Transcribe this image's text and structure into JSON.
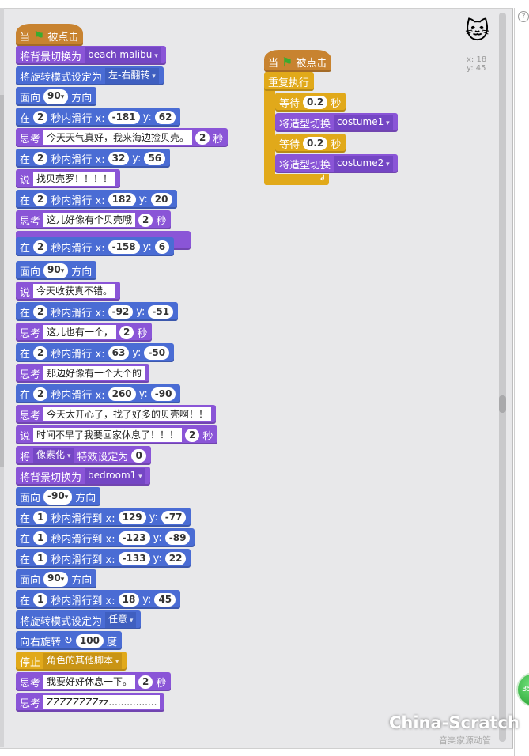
{
  "colors": {
    "motion": "#4a6cd4",
    "looks": "#8a55d7",
    "control": "#e1a91a",
    "events": "#c88330"
  },
  "sprite": {
    "icon": "scratch-cat-icon",
    "x_label": "x: 18",
    "y_label": "y: 45"
  },
  "help_label": "?",
  "badge": "35",
  "watermark": "China-Scratch",
  "watermark_sub": "音楽家源动管",
  "left_script": [
    {
      "cat": "events",
      "hat": true,
      "parts": [
        [
          "l",
          "当"
        ],
        [
          "flag",
          "green-flag-icon"
        ],
        [
          "l",
          "被点击"
        ]
      ]
    },
    {
      "cat": "looks",
      "parts": [
        [
          "l",
          "将背景切换为"
        ],
        [
          "dd",
          "beach malibu"
        ]
      ]
    },
    {
      "cat": "motion",
      "parts": [
        [
          "l",
          "将旋转模式设定为"
        ],
        [
          "dd",
          "左-右翻转"
        ]
      ]
    },
    {
      "cat": "motion",
      "parts": [
        [
          "l",
          "面向"
        ],
        [
          "ddn",
          "90"
        ],
        [
          "l",
          "方向"
        ]
      ]
    },
    {
      "cat": "motion",
      "parts": [
        [
          "l",
          "在"
        ],
        [
          "n",
          "2"
        ],
        [
          "l",
          "秒内滑行 x:"
        ],
        [
          "n",
          "-181"
        ],
        [
          "l",
          "y:"
        ],
        [
          "n",
          "62"
        ]
      ]
    },
    {
      "cat": "looks",
      "parts": [
        [
          "l",
          "思考"
        ],
        [
          "s",
          "今天天气真好，我来海边捡贝壳。"
        ],
        [
          "n",
          "2"
        ],
        [
          "l",
          "秒"
        ]
      ]
    },
    {
      "cat": "motion",
      "parts": [
        [
          "l",
          "在"
        ],
        [
          "n",
          "2"
        ],
        [
          "l",
          "秒内滑行 x:"
        ],
        [
          "n",
          "32"
        ],
        [
          "l",
          "y:"
        ],
        [
          "n",
          "56"
        ]
      ]
    },
    {
      "cat": "looks",
      "parts": [
        [
          "l",
          "说"
        ],
        [
          "s",
          "找贝壳罗！！！！"
        ]
      ]
    },
    {
      "cat": "motion",
      "parts": [
        [
          "l",
          "在"
        ],
        [
          "n",
          "2"
        ],
        [
          "l",
          "秒内滑行 x:"
        ],
        [
          "n",
          "182"
        ],
        [
          "l",
          "y:"
        ],
        [
          "n",
          "20"
        ]
      ]
    },
    {
      "cat": "looks",
      "parts": [
        [
          "l",
          "思考"
        ],
        [
          "s",
          "这儿好像有个贝壳哦"
        ],
        [
          "n",
          "2"
        ],
        [
          "l",
          "秒"
        ]
      ]
    },
    {
      "cat": "motion",
      "parts": [
        [
          "l",
          "在"
        ],
        [
          "n",
          "2"
        ],
        [
          "l",
          "秒内滑行 x:"
        ],
        [
          "n",
          "-158"
        ],
        [
          "l",
          "y:"
        ],
        [
          "n",
          "6"
        ]
      ]
    },
    {
      "cat": "motion",
      "parts": [
        [
          "l",
          "面向"
        ],
        [
          "ddn",
          "90"
        ],
        [
          "l",
          "方向"
        ]
      ]
    },
    {
      "cat": "looks",
      "parts": [
        [
          "l",
          "说"
        ],
        [
          "s",
          "今天收获真不错。"
        ]
      ]
    },
    {
      "cat": "motion",
      "parts": [
        [
          "l",
          "在"
        ],
        [
          "n",
          "2"
        ],
        [
          "l",
          "秒内滑行 x:"
        ],
        [
          "n",
          "-92"
        ],
        [
          "l",
          "y:"
        ],
        [
          "n",
          "-51"
        ]
      ]
    },
    {
      "cat": "looks",
      "parts": [
        [
          "l",
          "思考"
        ],
        [
          "s",
          "这儿也有一个，"
        ],
        [
          "n",
          "2"
        ],
        [
          "l",
          "秒"
        ]
      ]
    },
    {
      "cat": "motion",
      "parts": [
        [
          "l",
          "在"
        ],
        [
          "n",
          "2"
        ],
        [
          "l",
          "秒内滑行 x:"
        ],
        [
          "n",
          "63"
        ],
        [
          "l",
          "y:"
        ],
        [
          "n",
          "-50"
        ]
      ]
    },
    {
      "cat": "looks",
      "parts": [
        [
          "l",
          "思考"
        ],
        [
          "s",
          "那边好像有一个大个的"
        ]
      ]
    },
    {
      "cat": "motion",
      "parts": [
        [
          "l",
          "在"
        ],
        [
          "n",
          "2"
        ],
        [
          "l",
          "秒内滑行 x:"
        ],
        [
          "n",
          "260"
        ],
        [
          "l",
          "y:"
        ],
        [
          "n",
          "-90"
        ]
      ]
    },
    {
      "cat": "looks",
      "parts": [
        [
          "l",
          "思考"
        ],
        [
          "s",
          "今天太开心了，找了好多的贝壳啊！！"
        ]
      ]
    },
    {
      "cat": "looks",
      "parts": [
        [
          "l",
          "说"
        ],
        [
          "s",
          "时间不早了我要回家休息了！！！"
        ],
        [
          "n",
          "2"
        ],
        [
          "l",
          "秒"
        ]
      ]
    },
    {
      "cat": "looks",
      "parts": [
        [
          "l",
          "将"
        ],
        [
          "dd",
          "像素化"
        ],
        [
          "l",
          "特效设定为"
        ],
        [
          "n",
          "0"
        ]
      ]
    },
    {
      "cat": "looks",
      "parts": [
        [
          "l",
          "将背景切换为"
        ],
        [
          "dd",
          "bedroom1"
        ]
      ]
    },
    {
      "cat": "motion",
      "parts": [
        [
          "l",
          "面向"
        ],
        [
          "ddn",
          "-90"
        ],
        [
          "l",
          "方向"
        ]
      ]
    },
    {
      "cat": "motion",
      "parts": [
        [
          "l",
          "在"
        ],
        [
          "n",
          "1"
        ],
        [
          "l",
          "秒内滑行到 x:"
        ],
        [
          "n",
          "129"
        ],
        [
          "l",
          "y:"
        ],
        [
          "n",
          "-77"
        ]
      ]
    },
    {
      "cat": "motion",
      "parts": [
        [
          "l",
          "在"
        ],
        [
          "n",
          "1"
        ],
        [
          "l",
          "秒内滑行到 x:"
        ],
        [
          "n",
          "-123"
        ],
        [
          "l",
          "y:"
        ],
        [
          "n",
          "-89"
        ]
      ]
    },
    {
      "cat": "motion",
      "parts": [
        [
          "l",
          "在"
        ],
        [
          "n",
          "1"
        ],
        [
          "l",
          "秒内滑行到 x:"
        ],
        [
          "n",
          "-133"
        ],
        [
          "l",
          "y:"
        ],
        [
          "n",
          "22"
        ]
      ]
    },
    {
      "cat": "motion",
      "parts": [
        [
          "l",
          "面向"
        ],
        [
          "ddn",
          "90"
        ],
        [
          "l",
          "方向"
        ]
      ]
    },
    {
      "cat": "motion",
      "parts": [
        [
          "l",
          "在"
        ],
        [
          "n",
          "1"
        ],
        [
          "l",
          "秒内滑行到 x:"
        ],
        [
          "n",
          "18"
        ],
        [
          "l",
          "y:"
        ],
        [
          "n",
          "45"
        ]
      ]
    },
    {
      "cat": "motion",
      "parts": [
        [
          "l",
          "将旋转模式设定为"
        ],
        [
          "dd",
          "任意"
        ]
      ]
    },
    {
      "cat": "motion",
      "parts": [
        [
          "l",
          "向右旋转"
        ],
        [
          "l",
          "↻"
        ],
        [
          "n",
          "100"
        ],
        [
          "l",
          "度"
        ]
      ]
    },
    {
      "cat": "control",
      "parts": [
        [
          "l",
          "停止"
        ],
        [
          "dd",
          "角色的其他脚本"
        ]
      ]
    },
    {
      "cat": "looks",
      "parts": [
        [
          "l",
          "思考"
        ],
        [
          "s",
          "我要好好休息一下。"
        ],
        [
          "n",
          "2"
        ],
        [
          "l",
          "秒"
        ]
      ]
    },
    {
      "cat": "looks",
      "parts": [
        [
          "l",
          "思考"
        ],
        [
          "s",
          "ZZZZZZZZzz................"
        ]
      ]
    }
  ],
  "right_script": [
    {
      "cat": "events",
      "hat": true,
      "parts": [
        [
          "l",
          "当"
        ],
        [
          "flag",
          "green-flag-icon"
        ],
        [
          "l",
          "被点击"
        ]
      ]
    },
    {
      "cat": "control",
      "parts": [
        [
          "l",
          "重复执行"
        ]
      ]
    },
    {
      "cat": "control",
      "inner": true,
      "parts": [
        [
          "l",
          "等待"
        ],
        [
          "n",
          "0.2"
        ],
        [
          "l",
          "秒"
        ]
      ]
    },
    {
      "cat": "looks",
      "inner": true,
      "parts": [
        [
          "l",
          "将造型切换"
        ],
        [
          "dd",
          "costume1"
        ]
      ]
    },
    {
      "cat": "control",
      "inner": true,
      "parts": [
        [
          "l",
          "等待"
        ],
        [
          "n",
          "0.2"
        ],
        [
          "l",
          "秒"
        ]
      ]
    },
    {
      "cat": "looks",
      "inner": true,
      "parts": [
        [
          "l",
          "将造型切换"
        ],
        [
          "dd",
          "costume2"
        ]
      ]
    }
  ],
  "loop_arrow": "↲"
}
